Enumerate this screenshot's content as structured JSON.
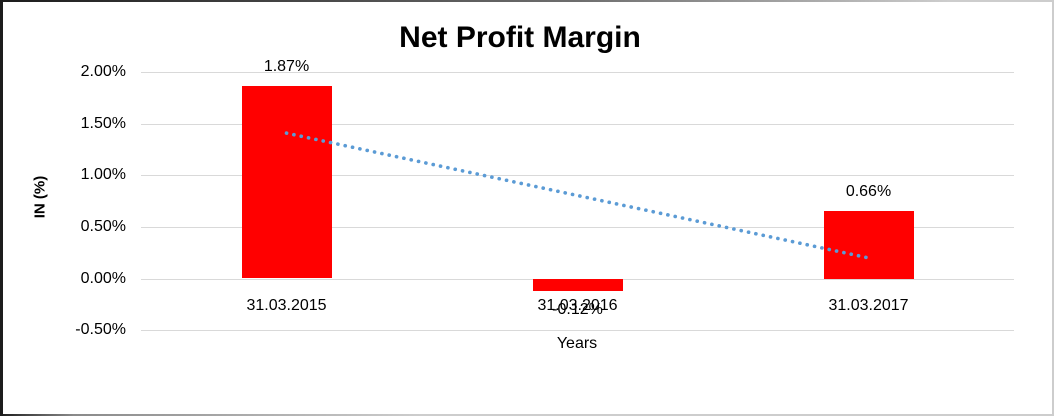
{
  "chart_data": {
    "type": "bar",
    "title": "Net Profit Margin",
    "xlabel": "Years",
    "ylabel": "IN (%)",
    "categories": [
      "31.03.2015",
      "31.03.2016",
      "31.03.2017"
    ],
    "values": [
      1.87,
      -0.12,
      0.66
    ],
    "data_labels": [
      "1.87%",
      "-0.12%",
      "0.66%"
    ],
    "yticks": [
      {
        "value": 2.0,
        "label": "2.00%"
      },
      {
        "value": 1.5,
        "label": "1.50%"
      },
      {
        "value": 1.0,
        "label": "1.00%"
      },
      {
        "value": 0.5,
        "label": "0.50%"
      },
      {
        "value": 0.0,
        "label": "0.00%"
      },
      {
        "value": -0.5,
        "label": "-0.50%"
      }
    ],
    "ylim": [
      -0.5,
      2.0
    ],
    "grid": true,
    "legend_position": "none",
    "bar_color": "#ff0000",
    "gridline_color": "#d9d9d9",
    "trendline": {
      "style": "dotted",
      "color": "#5b9bd5",
      "start_value": 1.41,
      "end_value": 0.2
    }
  }
}
